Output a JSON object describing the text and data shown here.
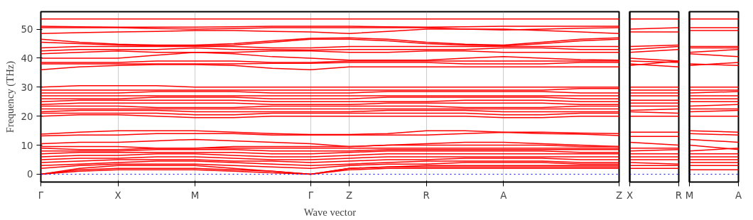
{
  "chart_data": [
    {
      "type": "line",
      "xlabel": "Wave vector",
      "ylabel": "Frequency (THz)",
      "categories": [
        "Γ",
        null,
        "X",
        null,
        "M",
        null,
        null,
        "Γ",
        "Z",
        null,
        "R",
        null,
        "A",
        null,
        null,
        "Z"
      ],
      "ylim": [
        -2.7,
        56
      ],
      "yticks": [
        0,
        10,
        20,
        30,
        40,
        50
      ],
      "grid": "x",
      "line_style": "solid",
      "ref_lines": [
        {
          "axis": "y",
          "value": 0,
          "color": "#0000ff",
          "line_style": "dotted"
        }
      ],
      "series": [
        {
          "color": "#ff0000",
          "values": [
            0,
            1,
            1.5,
            1.5,
            1.5,
            1,
            0.5,
            0,
            1.5,
            2,
            2,
            2,
            2,
            2,
            2,
            2
          ]
        },
        {
          "color": "#ff0000",
          "values": [
            0,
            1.5,
            2,
            2,
            2,
            1.5,
            1,
            0,
            2,
            2.5,
            2.5,
            2.5,
            2.5,
            2.5,
            2.5,
            2.5
          ]
        },
        {
          "color": "#ff0000",
          "values": [
            0,
            2,
            3,
            3,
            3,
            2,
            1,
            0,
            2,
            2.5,
            3,
            3,
            3,
            3,
            3,
            3
          ]
        },
        {
          "color": "#ff0000",
          "values": [
            2,
            3,
            3.5,
            3.5,
            3.5,
            3,
            2.5,
            2,
            3,
            3.5,
            3.5,
            4,
            4,
            4,
            3.5,
            3.5
          ]
        },
        {
          "color": "#ff0000",
          "values": [
            3,
            3.5,
            4,
            4.5,
            4.5,
            4,
            3.5,
            3,
            3.5,
            4,
            4.5,
            4.5,
            4.5,
            4.5,
            4,
            4
          ]
        },
        {
          "color": "#ff0000",
          "values": [
            4,
            4.5,
            5,
            5,
            5,
            4.5,
            4.5,
            4,
            4.5,
            5,
            5,
            5.5,
            5.5,
            5.5,
            5,
            5
          ]
        },
        {
          "color": "#ff0000",
          "values": [
            5,
            5.5,
            5.5,
            6,
            6,
            5.5,
            5,
            5,
            5.5,
            6,
            6,
            6,
            6,
            6,
            6,
            6
          ]
        },
        {
          "color": "#ff0000",
          "values": [
            6,
            6.5,
            6.5,
            7,
            7,
            6.5,
            6,
            6,
            6.5,
            7,
            7,
            7,
            7,
            7,
            7,
            7
          ]
        },
        {
          "color": "#ff0000",
          "values": [
            7,
            7.5,
            7.5,
            7.5,
            7.5,
            7.5,
            7,
            7,
            7.5,
            8,
            8,
            8,
            8,
            8,
            7.5,
            7.5
          ]
        },
        {
          "color": "#ff0000",
          "values": [
            8,
            8,
            8,
            8.5,
            8.5,
            8.5,
            8,
            8,
            8,
            8.5,
            8.5,
            8.5,
            8.5,
            8.5,
            8.5,
            8.5
          ]
        },
        {
          "color": "#ff0000",
          "values": [
            9,
            8.5,
            8.5,
            9,
            9,
            9,
            9,
            9,
            9,
            9,
            9,
            9,
            9,
            9,
            9,
            9
          ]
        },
        {
          "color": "#ff0000",
          "values": [
            9.5,
            9.5,
            9.5,
            9,
            9,
            9.5,
            9.5,
            9.5,
            9.5,
            10,
            10,
            10,
            10,
            10,
            9.5,
            9.5
          ]
        },
        {
          "color": "#ff0000",
          "values": [
            10.5,
            11,
            11,
            11.5,
            12,
            11.5,
            11,
            10.5,
            9.5,
            10,
            10.5,
            11,
            11,
            10.5,
            10,
            9.5
          ]
        },
        {
          "color": "#ff0000",
          "values": [
            13.2,
            13.5,
            13.5,
            14,
            14,
            14,
            13.5,
            13.5,
            13.5,
            13.5,
            13.5,
            14,
            14.4,
            14,
            13.8,
            13.3
          ]
        },
        {
          "color": "#ff0000",
          "values": [
            13.8,
            14.5,
            15,
            15,
            15,
            14.5,
            14,
            13.7,
            13.7,
            14,
            15,
            15,
            14.5,
            14.5,
            14.2,
            14
          ]
        },
        {
          "color": "#ff0000",
          "values": [
            20,
            20.5,
            20.5,
            20,
            19.5,
            19.5,
            20,
            20,
            20,
            20,
            20,
            20,
            19.5,
            19.5,
            20,
            20
          ]
        },
        {
          "color": "#ff0000",
          "values": [
            21,
            21,
            21,
            21,
            20.5,
            20.5,
            21,
            21,
            21,
            21,
            21,
            21,
            20.5,
            20.5,
            21,
            21
          ]
        },
        {
          "color": "#ff0000",
          "values": [
            21.5,
            22,
            22,
            22,
            21.5,
            21.5,
            21.5,
            21.5,
            21.5,
            22,
            22,
            22,
            21.5,
            21.5,
            21.5,
            21.5
          ]
        },
        {
          "color": "#ff0000",
          "values": [
            22.5,
            22.5,
            22.5,
            22.5,
            22.5,
            22.5,
            22.5,
            22.5,
            22.5,
            22.5,
            22.5,
            22.5,
            22.5,
            22.5,
            22.5,
            22.5
          ]
        },
        {
          "color": "#ff0000",
          "values": [
            23.5,
            23.5,
            23.5,
            23,
            23,
            23,
            23.5,
            23.5,
            23.5,
            23.5,
            23.5,
            23,
            23,
            23,
            23.5,
            23.5
          ]
        },
        {
          "color": "#ff0000",
          "values": [
            24,
            24.5,
            24.5,
            24.5,
            24.5,
            24.5,
            24,
            24,
            24,
            24.5,
            24.5,
            24.5,
            24.5,
            24.5,
            24,
            24
          ]
        },
        {
          "color": "#ff0000",
          "values": [
            25,
            25.5,
            25.5,
            25.5,
            25.5,
            25.5,
            25,
            25,
            25,
            25,
            25,
            25.5,
            25.5,
            25.5,
            25,
            25
          ]
        },
        {
          "color": "#ff0000",
          "values": [
            26,
            26,
            26,
            26.5,
            26.5,
            26.5,
            26,
            26,
            26,
            26.5,
            26.5,
            26.5,
            26.5,
            26.5,
            26,
            26
          ]
        },
        {
          "color": "#ff0000",
          "values": [
            27,
            27,
            27,
            27,
            27,
            27,
            27,
            27,
            27,
            27,
            27,
            27,
            27,
            27,
            27,
            27
          ]
        },
        {
          "color": "#ff0000",
          "values": [
            28,
            28,
            28,
            28.5,
            28.5,
            28.5,
            28,
            28,
            28,
            28.5,
            28.5,
            28.5,
            28.5,
            28.5,
            28,
            28
          ]
        },
        {
          "color": "#ff0000",
          "values": [
            29,
            29,
            29,
            29,
            29,
            29,
            29,
            29,
            29,
            29,
            29,
            29,
            29,
            29,
            29.5,
            29.5
          ]
        },
        {
          "color": "#ff0000",
          "values": [
            30,
            30.5,
            30.5,
            30.5,
            30,
            30,
            30,
            30,
            30,
            30,
            30,
            30,
            30,
            30,
            30,
            30
          ]
        },
        {
          "color": "#ff0000",
          "values": [
            36,
            37,
            37.5,
            37.8,
            37.8,
            37.5,
            36.5,
            36,
            37,
            37,
            37,
            37,
            37,
            37,
            37,
            37
          ]
        },
        {
          "color": "#ff0000",
          "values": [
            38,
            38,
            38,
            38,
            38,
            38,
            38.2,
            38.2,
            38.5,
            38.5,
            38.5,
            38,
            38,
            38,
            38.5,
            38.5
          ]
        },
        {
          "color": "#ff0000",
          "values": [
            38.5,
            38.5,
            38.5,
            39,
            39,
            39,
            38.5,
            38.5,
            39,
            39,
            39,
            39,
            39,
            39,
            39,
            39
          ]
        },
        {
          "color": "#ff0000",
          "values": [
            40,
            40,
            40,
            41,
            42,
            41.5,
            40.5,
            40,
            39.3,
            39.3,
            39.3,
            40,
            40.5,
            40,
            39.5,
            39.3
          ]
        },
        {
          "color": "#ff0000",
          "values": [
            41.5,
            42,
            42.5,
            42,
            42,
            42,
            42.5,
            42.5,
            42,
            42,
            42.5,
            42.5,
            42,
            42,
            42,
            42
          ]
        },
        {
          "color": "#ff0000",
          "values": [
            42.5,
            43,
            43,
            43,
            43.5,
            43,
            43,
            42.8,
            43,
            43,
            43,
            43,
            43.5,
            43.5,
            43,
            43
          ]
        },
        {
          "color": "#ff0000",
          "values": [
            43.5,
            44,
            44,
            44,
            44,
            44,
            43.5,
            43.5,
            44,
            44,
            44,
            44,
            44,
            44,
            44,
            44
          ]
        },
        {
          "color": "#ff0000",
          "values": [
            45.5,
            45,
            44.5,
            44.2,
            44.2,
            44.5,
            45.5,
            46.5,
            46.5,
            46,
            45,
            44.5,
            44.2,
            45,
            46,
            46.5
          ]
        },
        {
          "color": "#ff0000",
          "values": [
            46.5,
            45.5,
            44.8,
            44.5,
            44.5,
            45,
            46,
            46.8,
            47,
            46.5,
            45.5,
            44.8,
            44.5,
            45.5,
            46.5,
            47
          ]
        },
        {
          "color": "#ff0000",
          "values": [
            48.5,
            48.8,
            49,
            49.2,
            49.5,
            49.5,
            49.2,
            49,
            48.5,
            49.2,
            50,
            50,
            50,
            49.5,
            49,
            48.5
          ]
        },
        {
          "color": "#ff0000",
          "values": [
            50.5,
            50.5,
            50.5,
            50.2,
            50,
            50.2,
            50.5,
            50.5,
            50.5,
            50.5,
            50.5,
            50,
            49.7,
            50,
            50.3,
            50.5
          ]
        },
        {
          "color": "#ff0000",
          "values": [
            51,
            50.8,
            50.7,
            50.7,
            50.7,
            50.8,
            51,
            51,
            51,
            50.8,
            50.7,
            50.8,
            51,
            51,
            51,
            51
          ]
        },
        {
          "color": "#ff0000",
          "values": [
            53.5,
            53.5,
            53.5,
            53.5,
            53.5,
            53.5,
            53.5,
            53.5,
            53.5,
            53.5,
            53.5,
            53.5,
            53.5,
            53.5,
            53.5,
            53.5
          ]
        }
      ]
    },
    {
      "type": "line",
      "categories": [
        "X",
        "R"
      ],
      "ylim": [
        -2.7,
        56
      ],
      "yticks": [
        0,
        10,
        20,
        30,
        40,
        50
      ],
      "tick_labels": "x",
      "line_style": "solid",
      "ref_lines": [
        {
          "axis": "y",
          "value": 0,
          "color": "#0000ff",
          "line_style": "dotted"
        }
      ],
      "series": [
        {
          "color": "#ff0000",
          "values": [
            2,
            2
          ]
        },
        {
          "color": "#ff0000",
          "values": [
            3,
            3
          ]
        },
        {
          "color": "#ff0000",
          "values": [
            4,
            3.5
          ]
        },
        {
          "color": "#ff0000",
          "values": [
            5,
            5
          ]
        },
        {
          "color": "#ff0000",
          "values": [
            6,
            6
          ]
        },
        {
          "color": "#ff0000",
          "values": [
            7,
            7
          ]
        },
        {
          "color": "#ff0000",
          "values": [
            8,
            8.5
          ]
        },
        {
          "color": "#ff0000",
          "values": [
            9,
            9
          ]
        },
        {
          "color": "#ff0000",
          "values": [
            11,
            10
          ]
        },
        {
          "color": "#ff0000",
          "values": [
            13,
            13
          ]
        },
        {
          "color": "#ff0000",
          "values": [
            14.5,
            14.5
          ]
        },
        {
          "color": "#ff0000",
          "values": [
            20,
            20
          ]
        },
        {
          "color": "#ff0000",
          "values": [
            21.5,
            21
          ]
        },
        {
          "color": "#ff0000",
          "values": [
            22,
            22.5
          ]
        },
        {
          "color": "#ff0000",
          "values": [
            23.5,
            23.5
          ]
        },
        {
          "color": "#ff0000",
          "values": [
            24.5,
            24.5
          ]
        },
        {
          "color": "#ff0000",
          "values": [
            25.5,
            25.5
          ]
        },
        {
          "color": "#ff0000",
          "values": [
            27,
            27
          ]
        },
        {
          "color": "#ff0000",
          "values": [
            28,
            28
          ]
        },
        {
          "color": "#ff0000",
          "values": [
            29,
            29
          ]
        },
        {
          "color": "#ff0000",
          "values": [
            30,
            30
          ]
        },
        {
          "color": "#ff0000",
          "values": [
            37.5,
            39
          ]
        },
        {
          "color": "#ff0000",
          "values": [
            38,
            37
          ]
        },
        {
          "color": "#ff0000",
          "values": [
            39,
            38.5
          ]
        },
        {
          "color": "#ff0000",
          "values": [
            40,
            39
          ]
        },
        {
          "color": "#ff0000",
          "values": [
            42,
            43
          ]
        },
        {
          "color": "#ff0000",
          "values": [
            43,
            44
          ]
        },
        {
          "color": "#ff0000",
          "values": [
            44,
            44.5
          ]
        },
        {
          "color": "#ff0000",
          "values": [
            49,
            49
          ]
        },
        {
          "color": "#ff0000",
          "values": [
            50,
            50.5
          ]
        },
        {
          "color": "#ff0000",
          "values": [
            53.5,
            53.5
          ]
        }
      ]
    },
    {
      "type": "line",
      "categories": [
        "M",
        "A"
      ],
      "ylim": [
        -2.7,
        56
      ],
      "yticks": [
        0,
        10,
        20,
        30,
        40,
        50
      ],
      "tick_labels": "x",
      "line_style": "solid",
      "ref_lines": [
        {
          "axis": "y",
          "value": 0,
          "color": "#0000ff",
          "line_style": "dotted"
        }
      ],
      "series": [
        {
          "color": "#ff0000",
          "values": [
            1.5,
            1.5
          ]
        },
        {
          "color": "#ff0000",
          "values": [
            3,
            3
          ]
        },
        {
          "color": "#ff0000",
          "values": [
            4,
            4
          ]
        },
        {
          "color": "#ff0000",
          "values": [
            5,
            5
          ]
        },
        {
          "color": "#ff0000",
          "values": [
            6,
            6
          ]
        },
        {
          "color": "#ff0000",
          "values": [
            7,
            7
          ]
        },
        {
          "color": "#ff0000",
          "values": [
            8,
            9
          ]
        },
        {
          "color": "#ff0000",
          "values": [
            10,
            8.5
          ]
        },
        {
          "color": "#ff0000",
          "values": [
            12,
            11
          ]
        },
        {
          "color": "#ff0000",
          "values": [
            14,
            13.5
          ]
        },
        {
          "color": "#ff0000",
          "values": [
            15,
            14.5
          ]
        },
        {
          "color": "#ff0000",
          "values": [
            20,
            20
          ]
        },
        {
          "color": "#ff0000",
          "values": [
            21.5,
            22
          ]
        },
        {
          "color": "#ff0000",
          "values": [
            22.5,
            22.5
          ]
        },
        {
          "color": "#ff0000",
          "values": [
            23.5,
            24
          ]
        },
        {
          "color": "#ff0000",
          "values": [
            25,
            25
          ]
        },
        {
          "color": "#ff0000",
          "values": [
            26,
            26
          ]
        },
        {
          "color": "#ff0000",
          "values": [
            27,
            27
          ]
        },
        {
          "color": "#ff0000",
          "values": [
            28,
            28.5
          ]
        },
        {
          "color": "#ff0000",
          "values": [
            29,
            29
          ]
        },
        {
          "color": "#ff0000",
          "values": [
            30,
            30
          ]
        },
        {
          "color": "#ff0000",
          "values": [
            37.5,
            38.5
          ]
        },
        {
          "color": "#ff0000",
          "values": [
            38,
            37.5
          ]
        },
        {
          "color": "#ff0000",
          "values": [
            41.5,
            40.5
          ]
        },
        {
          "color": "#ff0000",
          "values": [
            42,
            43
          ]
        },
        {
          "color": "#ff0000",
          "values": [
            43.5,
            43.5
          ]
        },
        {
          "color": "#ff0000",
          "values": [
            44,
            44
          ]
        },
        {
          "color": "#ff0000",
          "values": [
            49.5,
            49.5
          ]
        },
        {
          "color": "#ff0000",
          "values": [
            50.5,
            50.5
          ]
        },
        {
          "color": "#ff0000",
          "values": [
            53.5,
            53.5
          ]
        }
      ]
    }
  ]
}
